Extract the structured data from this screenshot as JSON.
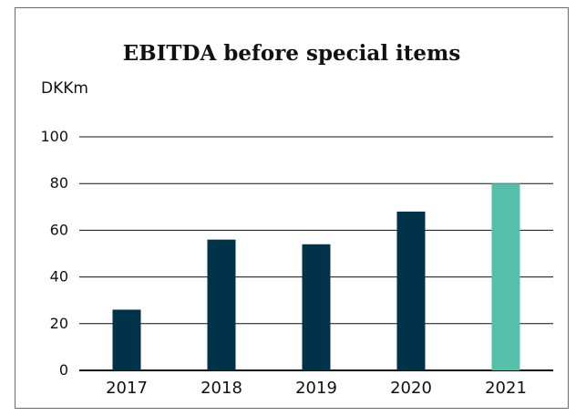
{
  "chart_data": {
    "type": "bar",
    "title": "EBITDA before special items",
    "unit_label": "DKKm",
    "xlabel": "",
    "ylabel": "",
    "categories": [
      "2017",
      "2018",
      "2019",
      "2020",
      "2021"
    ],
    "values": [
      26,
      56,
      54,
      68,
      80
    ],
    "bar_colors": [
      "#003349",
      "#003349",
      "#003349",
      "#003349",
      "#55bfaa"
    ],
    "ylim": [
      0,
      100
    ],
    "yticks": [
      0,
      20,
      40,
      60,
      80,
      100
    ],
    "grid": true,
    "legend": "none"
  },
  "colors": {
    "primary_bar": "#003349",
    "highlight_bar": "#55bfaa",
    "gridline": "#111111",
    "frame": "#6b6b6b"
  }
}
